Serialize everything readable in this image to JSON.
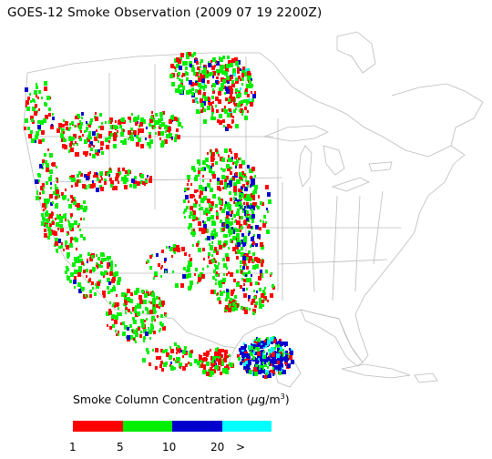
{
  "title": "GOES-12 Smoke Observation (2009 07 19  2200Z)",
  "legend": {
    "label_prefix": "Smoke Column Concentration (",
    "unit_mu": "μ",
    "unit_g": "g/m",
    "unit_exp": "3",
    "label_suffix": ")",
    "colors": [
      "#ff0000",
      "#00ee00",
      "#0000cc",
      "#00ffff"
    ],
    "ticks": [
      "1",
      "5",
      "10",
      "20",
      ">"
    ]
  },
  "map": {
    "background": "#ffffff",
    "boundary_color": "#bbbbbb",
    "classes": [
      "smoke-low",
      "smoke-moderate",
      "smoke-high",
      "smoke-very-high"
    ]
  }
}
